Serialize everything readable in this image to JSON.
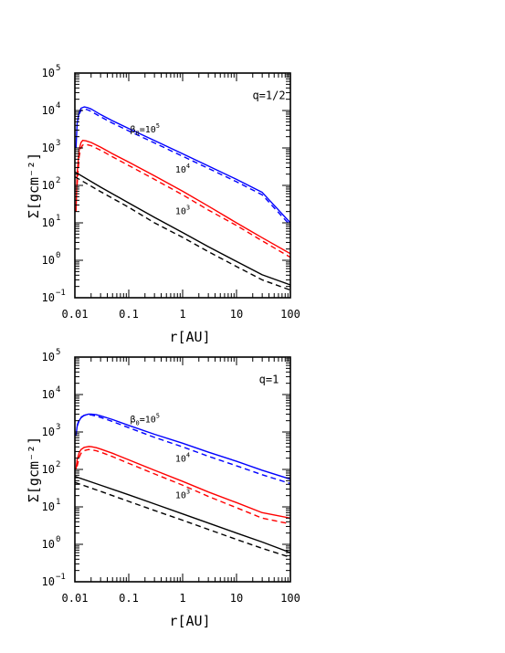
{
  "chart_data": [
    {
      "type": "line",
      "xscale": "log",
      "yscale": "log",
      "xlim": [
        0.01,
        100
      ],
      "ylim": [
        0.1,
        100000
      ],
      "xlabel": "r[AU]",
      "ylabel": "Σ[gcm⁻²]",
      "x_ticks": [
        "0.01",
        "0.1",
        "1",
        "10",
        "100"
      ],
      "y_ticks": [
        {
          "base": "10",
          "exp": "5"
        },
        {
          "base": "10",
          "exp": "4"
        },
        {
          "base": "10",
          "exp": "3"
        },
        {
          "base": "10",
          "exp": "2"
        },
        {
          "base": "10",
          "exp": "1"
        },
        {
          "base": "10",
          "exp": "0"
        },
        {
          "base": "10",
          "exp": "−1"
        }
      ],
      "annotations": [
        {
          "text": "q=1/2",
          "x": 40,
          "y": 20000
        },
        {
          "text_main": "β",
          "text_sub": "0",
          "text_rest": "=10",
          "text_sup": "5",
          "x": 0.2,
          "y": 2600
        },
        {
          "text_main": "10",
          "text_sup": "4",
          "x": 1.0,
          "y": 220
        },
        {
          "text_main": "10",
          "text_sup": "3",
          "x": 1.0,
          "y": 17
        }
      ],
      "series": [
        {
          "color": "#0000ff",
          "style": "solid",
          "x": [
            0.0105,
            0.011,
            0.012,
            0.013,
            0.015,
            0.017,
            0.02,
            0.03,
            0.05,
            0.1,
            0.3,
            1,
            3,
            10,
            30,
            100
          ],
          "y": [
            1000,
            4500,
            9000,
            11500,
            12500,
            12000,
            11000,
            7800,
            5300,
            3300,
            1580,
            700,
            330,
            145,
            65,
            10
          ]
        },
        {
          "color": "#0000ff",
          "style": "dashed",
          "x": [
            0.012,
            0.013,
            0.015,
            0.017,
            0.02,
            0.03,
            0.05,
            0.1,
            0.3,
            1,
            3,
            10,
            30,
            100
          ],
          "y": [
            8000,
            10000,
            11000,
            10500,
            9500,
            6800,
            4600,
            2850,
            1360,
            600,
            285,
            125,
            56,
            8.5
          ]
        },
        {
          "color": "#ff0000",
          "style": "solid",
          "x": [
            0.0105,
            0.011,
            0.012,
            0.013,
            0.014,
            0.016,
            0.02,
            0.03,
            0.05,
            0.1,
            0.3,
            1,
            3,
            10,
            30,
            100
          ],
          "y": [
            20,
            200,
            900,
            1400,
            1600,
            1550,
            1400,
            1050,
            700,
            420,
            180,
            70,
            28,
            10,
            4,
            1.5
          ]
        },
        {
          "color": "#ff0000",
          "style": "dashed",
          "x": [
            0.011,
            0.012,
            0.013,
            0.014,
            0.016,
            0.02,
            0.03,
            0.05,
            0.1,
            0.3,
            1,
            3,
            10,
            30,
            100
          ],
          "y": [
            100,
            600,
            1000,
            1200,
            1250,
            1150,
            870,
            580,
            340,
            145,
            56,
            22,
            8.5,
            3.3,
            1.2
          ]
        },
        {
          "color": "#000000",
          "style": "solid",
          "x": [
            0.01,
            0.03,
            0.1,
            0.3,
            1,
            3,
            10,
            30,
            100
          ],
          "y": [
            230,
            90,
            34,
            14,
            5.5,
            2.3,
            0.93,
            0.41,
            0.22
          ]
        },
        {
          "color": "#000000",
          "style": "dashed",
          "x": [
            0.01,
            0.03,
            0.1,
            0.3,
            1,
            3,
            10,
            30,
            100
          ],
          "y": [
            170,
            68,
            26,
            10,
            4.1,
            1.7,
            0.68,
            0.3,
            0.16
          ]
        }
      ]
    },
    {
      "type": "line",
      "xscale": "log",
      "yscale": "log",
      "xlim": [
        0.01,
        100
      ],
      "ylim": [
        0.1,
        100000
      ],
      "xlabel": "r[AU]",
      "ylabel": "Σ[gcm⁻²]",
      "x_ticks": [
        "0.01",
        "0.1",
        "1",
        "10",
        "100"
      ],
      "y_ticks": [
        {
          "base": "10",
          "exp": "5"
        },
        {
          "base": "10",
          "exp": "4"
        },
        {
          "base": "10",
          "exp": "3"
        },
        {
          "base": "10",
          "exp": "2"
        },
        {
          "base": "10",
          "exp": "1"
        },
        {
          "base": "10",
          "exp": "0"
        },
        {
          "base": "10",
          "exp": "−1"
        }
      ],
      "annotations": [
        {
          "text": "q=1",
          "x": 40,
          "y": 20000
        },
        {
          "text_main": "β",
          "text_sub": "0",
          "text_rest": "=10",
          "text_sup": "5",
          "x": 0.2,
          "y": 1800
        },
        {
          "text_main": "10",
          "text_sup": "4",
          "x": 1.0,
          "y": 160
        },
        {
          "text_main": "10",
          "text_sup": "3",
          "x": 1.0,
          "y": 17
        }
      ],
      "series": [
        {
          "color": "#0000ff",
          "style": "solid",
          "x": [
            0.0105,
            0.011,
            0.012,
            0.013,
            0.015,
            0.018,
            0.02,
            0.025,
            0.03,
            0.05,
            0.1,
            0.3,
            1,
            3,
            10,
            30,
            100
          ],
          "y": [
            800,
            1400,
            2000,
            2400,
            2800,
            3000,
            3000,
            2900,
            2700,
            2150,
            1500,
            870,
            500,
            290,
            165,
            95,
            55
          ]
        },
        {
          "color": "#0000ff",
          "style": "dashed",
          "x": [
            0.011,
            0.012,
            0.013,
            0.015,
            0.018,
            0.02,
            0.025,
            0.03,
            0.05,
            0.1,
            0.3,
            1,
            3,
            10,
            30,
            100
          ],
          "y": [
            1500,
            2100,
            2500,
            2800,
            2900,
            2850,
            2650,
            2450,
            1900,
            1300,
            720,
            400,
            225,
            125,
            72,
            42
          ]
        },
        {
          "color": "#ff0000",
          "style": "solid",
          "x": [
            0.0105,
            0.011,
            0.012,
            0.013,
            0.015,
            0.018,
            0.02,
            0.025,
            0.03,
            0.05,
            0.1,
            0.3,
            1,
            3,
            10,
            30,
            100
          ],
          "y": [
            100,
            180,
            280,
            340,
            390,
            410,
            405,
            380,
            350,
            270,
            180,
            95,
            48,
            25,
            13,
            7,
            5
          ]
        },
        {
          "color": "#ff0000",
          "style": "dashed",
          "x": [
            0.011,
            0.012,
            0.013,
            0.015,
            0.018,
            0.02,
            0.025,
            0.03,
            0.05,
            0.1,
            0.3,
            1,
            3,
            10,
            30,
            100
          ],
          "y": [
            120,
            210,
            270,
            320,
            340,
            335,
            315,
            290,
            220,
            145,
            76,
            38,
            19,
            9.5,
            5,
            3.5
          ]
        },
        {
          "color": "#000000",
          "style": "solid",
          "x": [
            0.01,
            0.03,
            0.1,
            0.3,
            1,
            3,
            10,
            30,
            100
          ],
          "y": [
            65,
            38,
            21,
            12,
            6.5,
            3.7,
            2.0,
            1.15,
            0.6
          ]
        },
        {
          "color": "#000000",
          "style": "dashed",
          "x": [
            0.01,
            0.03,
            0.1,
            0.3,
            1,
            3,
            10,
            30,
            100
          ],
          "y": [
            45,
            26,
            14,
            8,
            4.4,
            2.5,
            1.35,
            0.78,
            0.45
          ]
        }
      ]
    }
  ]
}
